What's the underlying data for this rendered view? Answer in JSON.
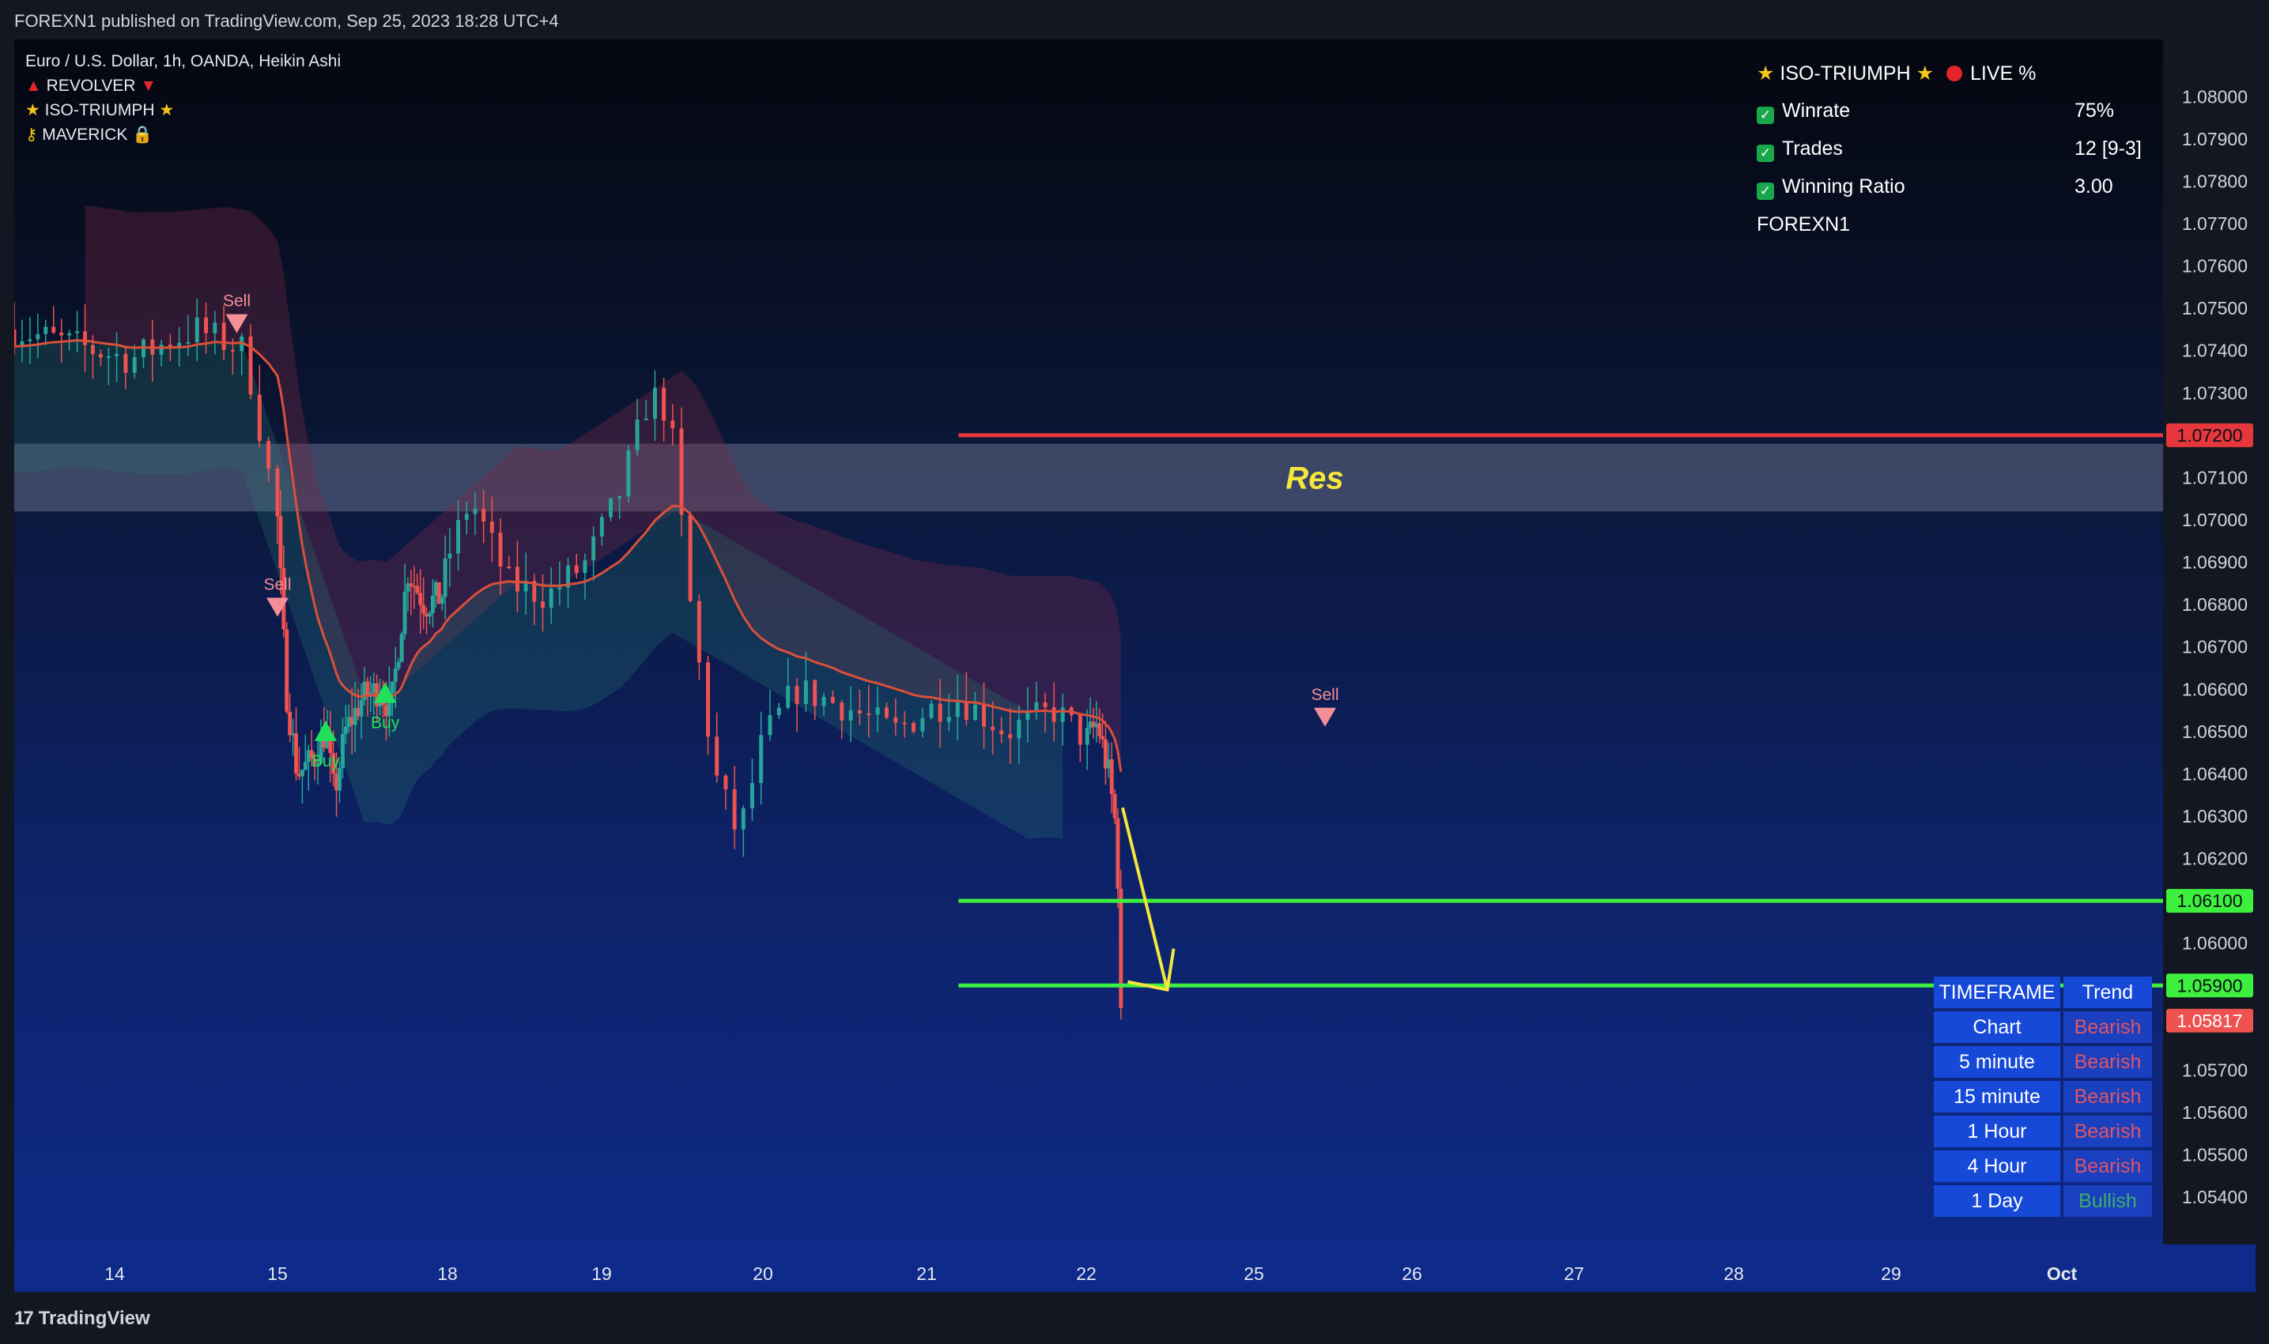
{
  "header": {
    "published": "FOREXN1 published on TradingView.com, Sep 25, 2023 18:28 UTC+4"
  },
  "legend": {
    "symbol": "Euro / U.S. Dollar, 1h, OANDA, Heikin Ashi",
    "ind1": "REVOLVER",
    "ind2": "ISO-TRIUMPH",
    "ind3": "MAVERICK"
  },
  "stats_panel": {
    "title": "ISO-TRIUMPH",
    "live": "LIVE %",
    "rows": [
      {
        "label": "Winrate",
        "value": "75%"
      },
      {
        "label": "Trades",
        "value": "12 [9-3]"
      },
      {
        "label": "Winning Ratio",
        "value": "3.00"
      }
    ],
    "author": "FOREXN1"
  },
  "trend_table": {
    "headers": [
      "TIMEFRAME",
      "Trend"
    ],
    "rows": [
      {
        "tf": "Chart",
        "trend": "Bearish"
      },
      {
        "tf": "5 minute",
        "trend": "Bearish"
      },
      {
        "tf": "15 minute",
        "trend": "Bearish"
      },
      {
        "tf": "1 Hour",
        "trend": "Bearish"
      },
      {
        "tf": "4 Hour",
        "trend": "Bearish"
      },
      {
        "tf": "1 Day",
        "trend": "Bullish"
      }
    ]
  },
  "footer": {
    "brand": "TradingView"
  },
  "colors": {
    "bull": "#26a69a",
    "bear": "#ef5350",
    "resistance": "#e6383c",
    "support": "#3ef03e",
    "annotation": "#f5e63d"
  },
  "chart_data": {
    "type": "candlestick",
    "instrument": "EURUSD",
    "timeframe": "1h",
    "yticks": [
      "1.08000",
      "1.07900",
      "1.07800",
      "1.07700",
      "1.07600",
      "1.07500",
      "1.07400",
      "1.07300",
      "1.07100",
      "1.07000",
      "1.06900",
      "1.06800",
      "1.06700",
      "1.06600",
      "1.06500",
      "1.06400",
      "1.06300",
      "1.06200",
      "1.06000",
      "1.05700",
      "1.05600",
      "1.05500",
      "1.05400"
    ],
    "ylim": [
      1.0532,
      1.0812
    ],
    "x_labels": [
      "14",
      "15",
      "18",
      "19",
      "20",
      "21",
      "22",
      "25",
      "26",
      "27",
      "28",
      "29",
      "Oct"
    ],
    "price_labels": [
      {
        "text": "1.07200",
        "value": 1.072,
        "color": "#e6383c"
      },
      {
        "text": "1.06100",
        "value": 1.061,
        "color": "#3ef03e"
      },
      {
        "text": "1.05900",
        "value": 1.059,
        "color": "#3ef03e"
      },
      {
        "text": "1.05817",
        "value": 1.05817,
        "color": "#ef5350"
      }
    ],
    "resistance_zone": {
      "label": "Res",
      "from": 1.0702,
      "to": 1.0718
    },
    "lines": [
      {
        "name": "resistance",
        "value": 1.072
      },
      {
        "name": "support-1",
        "value": 1.061
      },
      {
        "name": "support-2",
        "value": 1.059
      }
    ],
    "signals": [
      {
        "type": "Sell",
        "day": 14.75,
        "price": 1.0746
      },
      {
        "type": "Sell",
        "day": 15.0,
        "price": 1.0679
      },
      {
        "type": "Buy",
        "day": 15.85,
        "price": 1.065
      },
      {
        "type": "Buy",
        "day": 16.9,
        "price": 1.0659
      },
      {
        "type": "Sell",
        "day": 25.45,
        "price": 1.0653
      }
    ],
    "series_path": [
      [
        13.3,
        1.0745
      ],
      [
        14.1,
        1.0738
      ],
      [
        14.5,
        1.0745
      ],
      [
        14.8,
        1.074
      ],
      [
        15.0,
        1.07
      ],
      [
        15.15,
        1.066
      ],
      [
        15.35,
        1.064
      ],
      [
        15.6,
        1.0643
      ],
      [
        15.85,
        1.065
      ],
      [
        16.0,
        1.0635
      ],
      [
        16.2,
        1.065
      ],
      [
        16.5,
        1.0658
      ],
      [
        16.8,
        1.066
      ],
      [
        17.0,
        1.0655
      ],
      [
        17.3,
        1.0688
      ],
      [
        17.6,
        1.068
      ],
      [
        17.9,
        1.0682
      ],
      [
        18.15,
        1.0705
      ],
      [
        18.4,
        1.0685
      ],
      [
        18.65,
        1.0682
      ],
      [
        18.9,
        1.069
      ],
      [
        19.1,
        1.0705
      ],
      [
        19.3,
        1.073
      ],
      [
        19.42,
        1.0725
      ],
      [
        19.55,
        1.068
      ],
      [
        19.7,
        1.064
      ],
      [
        19.85,
        1.0625
      ],
      [
        20.0,
        1.0648
      ],
      [
        20.2,
        1.066
      ],
      [
        20.5,
        1.0656
      ],
      [
        20.8,
        1.065
      ],
      [
        21.0,
        1.0655
      ],
      [
        21.2,
        1.0658
      ],
      [
        21.5,
        1.065
      ],
      [
        21.8,
        1.0655
      ],
      [
        22.0,
        1.0648
      ],
      [
        22.2,
        1.0652
      ],
      [
        22.4,
        1.064
      ],
      [
        22.55,
        1.0625
      ],
      [
        22.6,
        1.0595
      ],
      [
        22.62,
        1.05817
      ]
    ],
    "projection": {
      "from": [
        22.65,
        1.0632
      ],
      "to": [
        23.45,
        1.0589
      ]
    }
  }
}
